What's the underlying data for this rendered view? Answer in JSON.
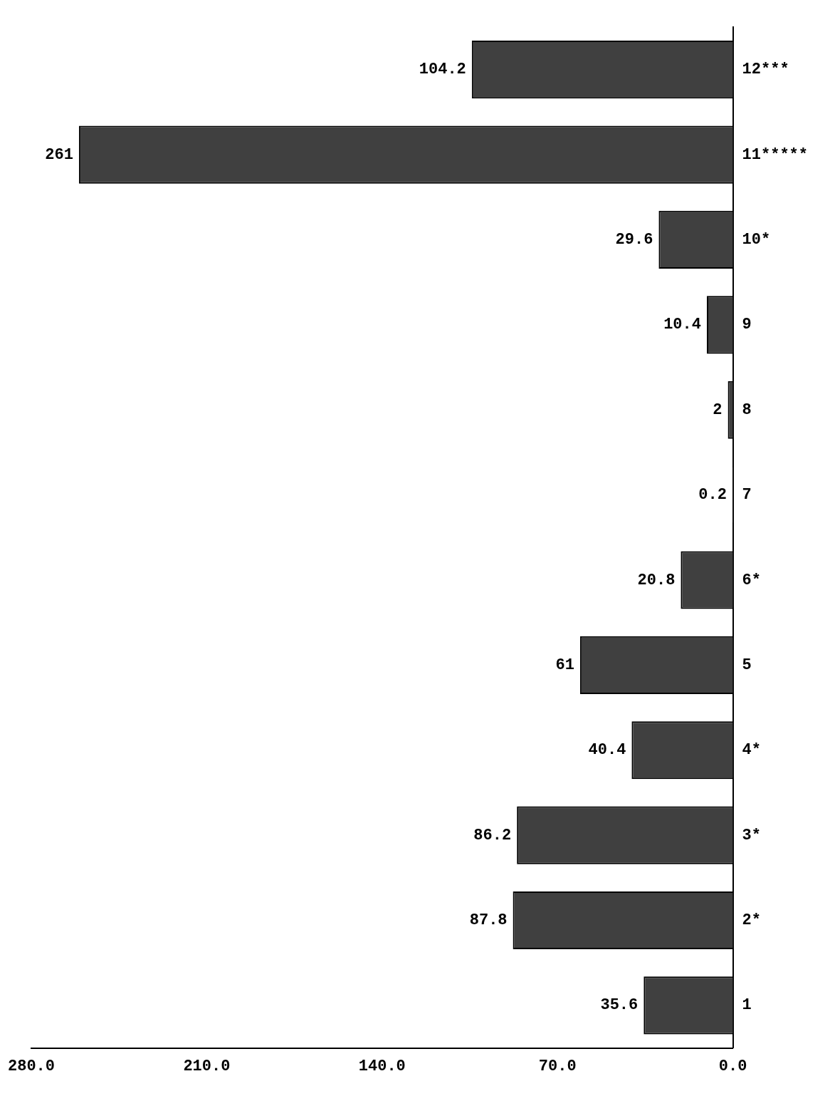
{
  "chart_data": {
    "type": "bar",
    "orientation": "horizontal",
    "categories": [
      "12***",
      "11*****",
      "10*",
      "9",
      "8",
      "7",
      "6*",
      "5",
      "4*",
      "3*",
      "2*",
      "1"
    ],
    "values": [
      104.2,
      261,
      29.6,
      10.4,
      2,
      0.2,
      20.8,
      61,
      40.4,
      86.2,
      87.8,
      35.6
    ],
    "color": "#404040",
    "data_labels": true,
    "grid": false,
    "legend": false,
    "xlim": [
      280,
      0
    ],
    "xticks": [
      {
        "value": 280,
        "label": "280.0"
      },
      {
        "value": 210,
        "label": "210.0"
      },
      {
        "value": 140,
        "label": "140.0"
      },
      {
        "value": 70,
        "label": "70.0"
      },
      {
        "value": 0,
        "label": "0.0"
      }
    ]
  }
}
